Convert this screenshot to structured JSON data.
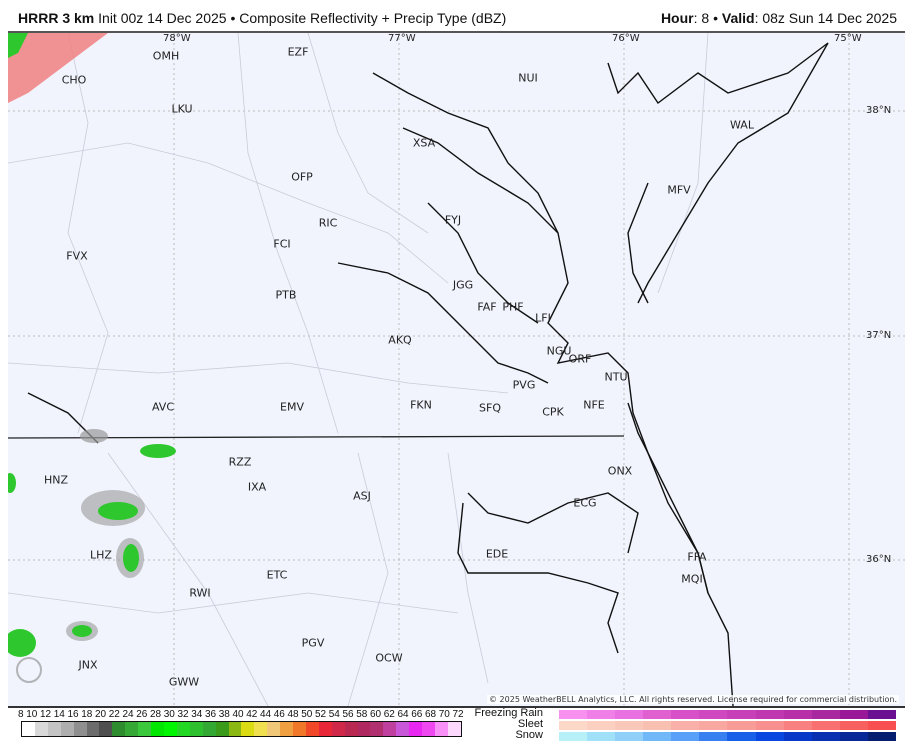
{
  "header": {
    "model": "HRRR 3 km",
    "init": "Init 00z 14 Dec 2025",
    "product": "Composite Reflectivity + Precip Type (dBZ)",
    "hour_label": "Hour",
    "hour": "8",
    "valid_label": "Valid",
    "valid": "08z Sun 14 Dec 2025",
    "separator": "•"
  },
  "grid_labels": {
    "lon": [
      "78°W",
      "77°W",
      "76°W",
      "75°W"
    ],
    "lat": [
      "38°N",
      "37°N",
      "36°N"
    ]
  },
  "cities": [
    "EZF",
    "OMH",
    "CHO",
    "NUI",
    "LKU",
    "XSA",
    "WAL",
    "OFP",
    "MFV",
    "FYJ",
    "RIC",
    "FCI",
    "FVX",
    "JGG",
    "FAF",
    "PHF",
    "LFI",
    "PTB",
    "AKQ",
    "NGU",
    "ORF",
    "NTU",
    "PVG",
    "AVC",
    "EMV",
    "FKN",
    "SFQ",
    "CPK",
    "NFE",
    "RZZ",
    "ONX",
    "HNZ",
    "IXA",
    "ASJ",
    "ECG",
    "LHZ",
    "EDE",
    "FFA",
    "MQI",
    "ETC",
    "RWI",
    "PGV",
    "OCW",
    "JNX",
    "GWW"
  ],
  "watermark": "WeatherBELL",
  "copyright": "© 2025 WeatherBELL Analytics, LLC. All rights reserved. License required for commercial distribution.",
  "legend": {
    "dbz_ticks": [
      "8",
      "10",
      "12",
      "14",
      "16",
      "18",
      "20",
      "22",
      "24",
      "26",
      "28",
      "30",
      "32",
      "34",
      "36",
      "38",
      "40",
      "42",
      "44",
      "46",
      "48",
      "50",
      "52",
      "54",
      "56",
      "58",
      "60",
      "62",
      "64",
      "66",
      "68",
      "70",
      "72"
    ],
    "dbz_colors": [
      "#ffffff",
      "#d9d9d9",
      "#c4c4c4",
      "#aeaeae",
      "#8f8f8f",
      "#6c6c6c",
      "#4f4f4f",
      "#2e8b2e",
      "#36a836",
      "#3cc83c",
      "#00e600",
      "#00f500",
      "#22d822",
      "#2fc02f",
      "#33a833",
      "#3a9a1a",
      "#8cb814",
      "#dcdc14",
      "#f0e050",
      "#f0c878",
      "#f0a040",
      "#f07828",
      "#f04828",
      "#e82838",
      "#d02848",
      "#b82850",
      "#b02860",
      "#b03070",
      "#c040a0",
      "#c858d8",
      "#e828f0",
      "#f048f0",
      "#f890f8",
      "#fcd8fc"
    ],
    "ptypes": [
      {
        "label": "Freezing Rain",
        "colors": [
          "#f890f0",
          "#f080e8",
          "#e870e0",
          "#e060d0",
          "#d850c8",
          "#d048c0",
          "#c840b8",
          "#c038b0",
          "#b830a8",
          "#a828a0",
          "#981898",
          "#6a1090"
        ]
      },
      {
        "label": "Sleet",
        "colors": [
          "#fcd8c8",
          "#fcd0c0",
          "#fac8b8",
          "#f8c0b0",
          "#f8b0a8",
          "#f8a8a0",
          "#f89c98",
          "#f89090",
          "#f88080",
          "#f87070",
          "#f86060",
          "#f85050"
        ]
      },
      {
        "label": "Snow",
        "colors": [
          "#b8f0f8",
          "#a0e0f8",
          "#90d0f8",
          "#70b8f8",
          "#58a0f8",
          "#3880f0",
          "#1860e8",
          "#0848e0",
          "#0838c8",
          "#0830b0",
          "#082898",
          "#061e70"
        ]
      }
    ]
  }
}
